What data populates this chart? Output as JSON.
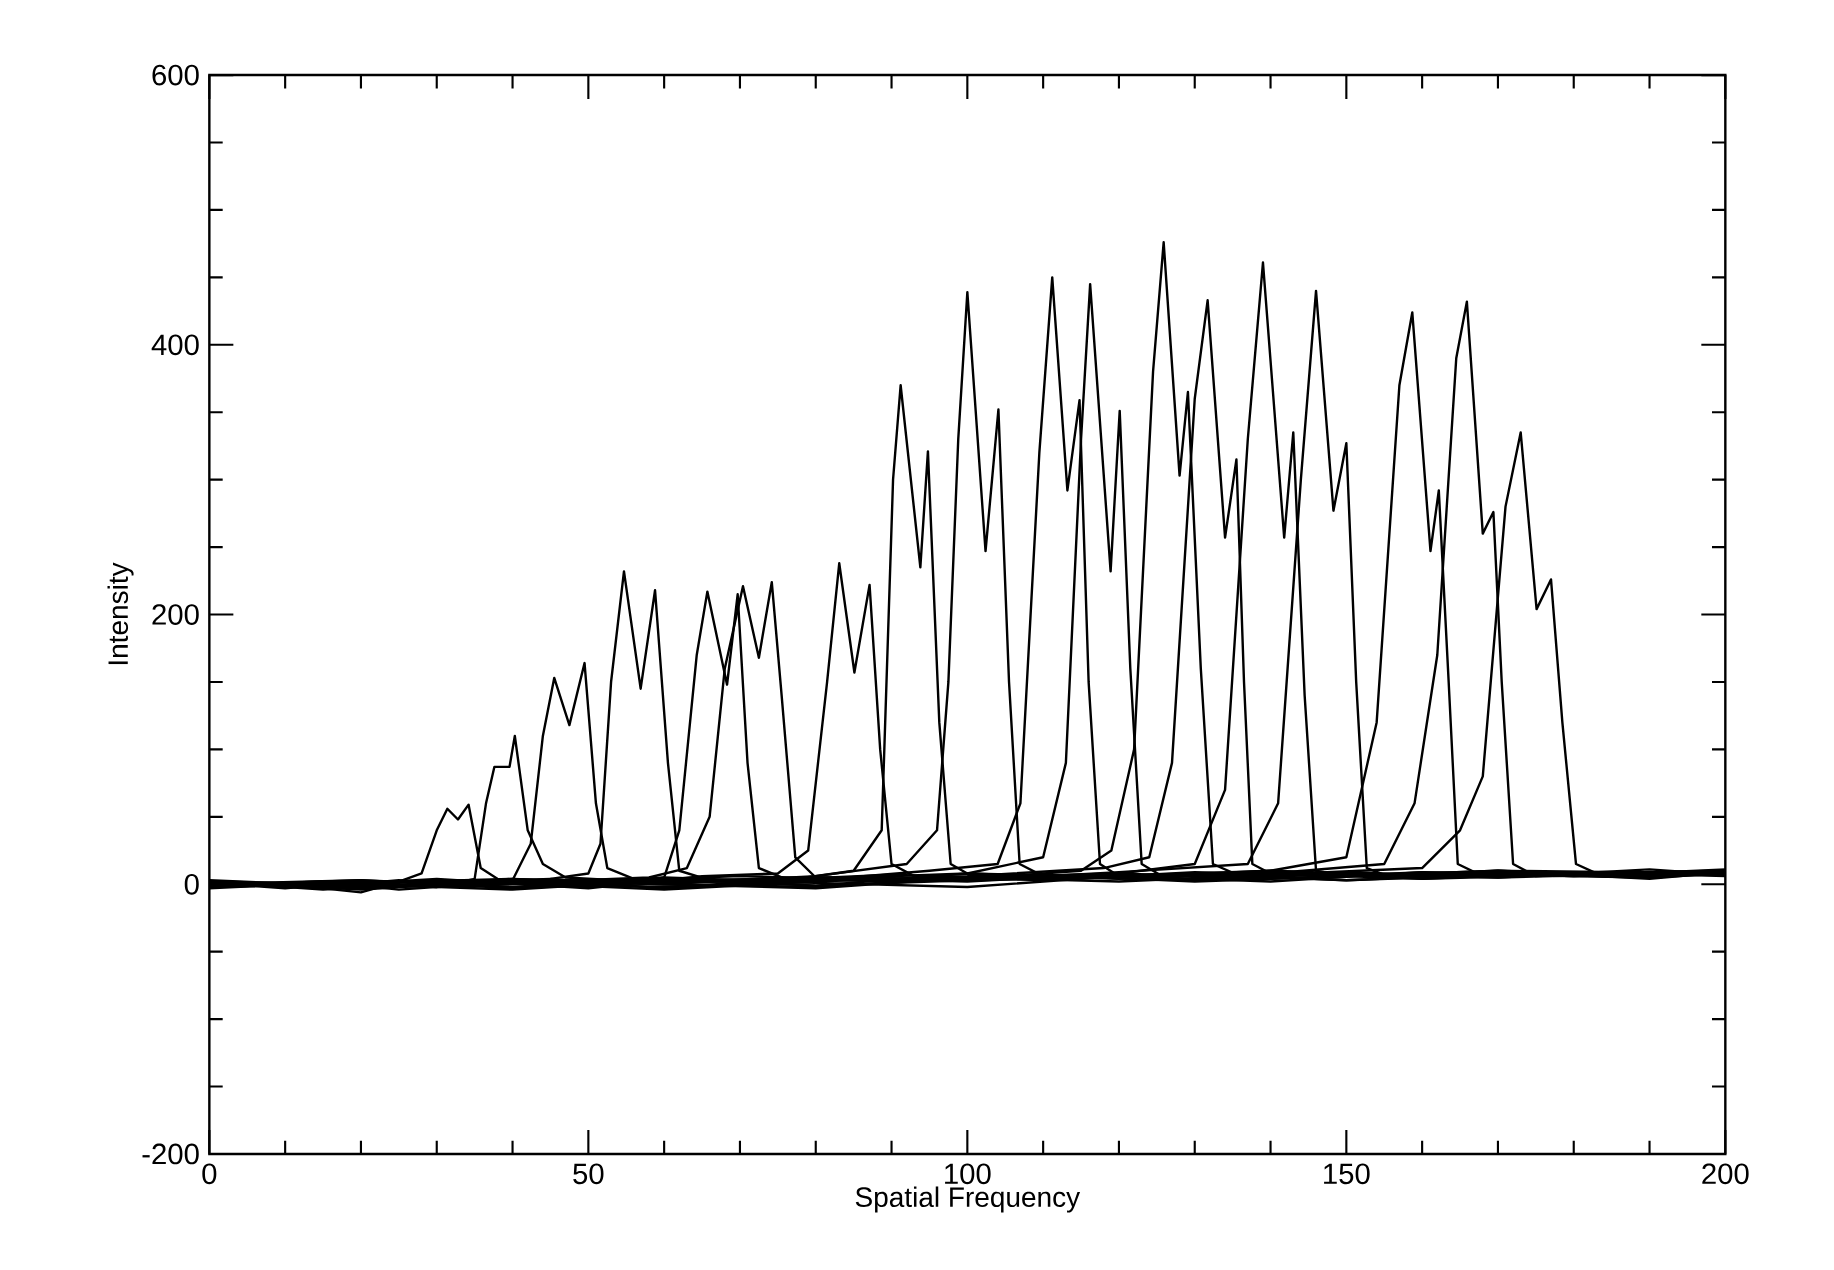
{
  "chart_data": {
    "type": "line",
    "xlabel": "Spatial Frequency",
    "ylabel": "Intensity",
    "marker": "none",
    "xlim": [
      0,
      200
    ],
    "ylim": [
      -200,
      600
    ],
    "xticks": [
      0,
      {
        "value": 10,
        "label": null
      },
      {
        "value": 20,
        "label": null
      },
      {
        "value": 30,
        "label": null
      },
      {
        "value": 40,
        "label": null
      },
      50,
      {
        "value": 60,
        "label": null
      },
      {
        "value": 70,
        "label": null
      },
      {
        "value": 80,
        "label": null
      },
      {
        "value": 90,
        "label": null
      },
      100,
      {
        "value": 110,
        "label": null
      },
      {
        "value": 120,
        "label": null
      },
      {
        "value": 130,
        "label": null
      },
      {
        "value": 140,
        "label": null
      },
      150,
      {
        "value": 160,
        "label": null
      },
      {
        "value": 170,
        "label": null
      },
      {
        "value": 180,
        "label": null
      },
      {
        "value": 190,
        "label": null
      },
      200
    ],
    "yticks": [
      -200,
      {
        "value": -150,
        "label": null
      },
      {
        "value": -100,
        "label": null
      },
      {
        "value": -50,
        "label": null
      },
      0,
      {
        "value": 50,
        "label": null
      },
      {
        "value": 100,
        "label": null
      },
      {
        "value": 150,
        "label": null
      },
      200,
      {
        "value": 250,
        "label": null
      },
      {
        "value": 300,
        "label": null
      },
      {
        "value": 350,
        "label": null
      },
      400,
      {
        "value": 450,
        "label": null
      },
      {
        "value": 500,
        "label": null
      },
      {
        "value": 550,
        "label": null
      },
      600
    ],
    "series": [
      {
        "color": "#000000",
        "x": [
          0,
          10,
          20,
          25,
          28,
          30,
          31.4,
          32.8,
          34.2,
          35.8,
          38,
          50,
          70,
          90,
          110,
          130,
          150,
          170,
          190,
          200
        ],
        "values": [
          -2,
          0,
          -6,
          2,
          8,
          40,
          56,
          48,
          59,
          12,
          4,
          2,
          6,
          3,
          5,
          8,
          6,
          9,
          7,
          10
        ]
      },
      {
        "color": "#000000",
        "x": [
          0,
          10,
          20,
          30,
          35,
          36.5,
          37.6,
          39.6,
          40.3,
          42,
          44,
          47,
          60,
          80,
          100,
          120,
          140,
          160,
          180,
          200
        ],
        "values": [
          1,
          -3,
          2,
          -2,
          4,
          60,
          87,
          87,
          110,
          40,
          15,
          5,
          1,
          4,
          8,
          5,
          10,
          6,
          8,
          9
        ]
      },
      {
        "color": "#000000",
        "x": [
          0,
          15,
          25,
          35,
          40,
          42.4,
          44,
          45.5,
          47.5,
          49.5,
          51,
          52.5,
          56,
          70,
          90,
          110,
          130,
          150,
          170,
          200
        ],
        "values": [
          -1,
          2,
          -4,
          0,
          3,
          30,
          110,
          153,
          118,
          164,
          60,
          12,
          4,
          2,
          7,
          3,
          9,
          6,
          10,
          8
        ]
      },
      {
        "color": "#000000",
        "x": [
          0,
          15,
          25,
          35,
          45,
          50,
          51.6,
          53,
          54.7,
          56.9,
          58.8,
          60.5,
          62,
          66,
          80,
          100,
          120,
          140,
          160,
          180,
          200
        ],
        "values": [
          0,
          -2,
          3,
          -1,
          4,
          8,
          30,
          150,
          232,
          145,
          218,
          90,
          10,
          3,
          5,
          2,
          8,
          4,
          9,
          6,
          11
        ]
      },
      {
        "color": "#000000",
        "x": [
          0,
          15,
          30,
          45,
          55,
          60,
          62,
          64.3,
          65.7,
          68.3,
          69.7,
          71,
          72.5,
          76,
          90,
          110,
          130,
          150,
          170,
          190,
          200
        ],
        "values": [
          2,
          -4,
          1,
          4,
          0,
          5,
          40,
          170,
          217,
          148,
          215,
          90,
          12,
          4,
          2,
          6,
          3,
          9,
          5,
          8,
          7
        ]
      },
      {
        "color": "#000000",
        "x": [
          0,
          15,
          30,
          45,
          58,
          63,
          66,
          68,
          70.4,
          72.5,
          74.2,
          75.5,
          77.3,
          80,
          90,
          110,
          130,
          150,
          170,
          190,
          200
        ],
        "values": [
          -3,
          1,
          -2,
          2,
          5,
          12,
          50,
          160,
          221,
          168,
          224,
          140,
          20,
          5,
          3,
          7,
          2,
          6,
          10,
          4,
          9
        ]
      },
      {
        "color": "#000000",
        "x": [
          0,
          15,
          30,
          50,
          65,
          75,
          79,
          81.5,
          83.1,
          85.1,
          87.1,
          88.5,
          90,
          93,
          110,
          130,
          150,
          170,
          190,
          200
        ],
        "values": [
          1,
          -1,
          4,
          -3,
          6,
          8,
          25,
          150,
          238,
          157,
          222,
          100,
          15,
          6,
          4,
          8,
          3,
          7,
          5,
          10
        ]
      },
      {
        "color": "#000000",
        "x": [
          0,
          20,
          40,
          60,
          75,
          85,
          88.7,
          90.2,
          91.2,
          93.8,
          94.8,
          96.3,
          97.8,
          100,
          120,
          140,
          160,
          180,
          200
        ],
        "values": [
          0,
          3,
          -2,
          5,
          2,
          10,
          40,
          300,
          370,
          235,
          321,
          120,
          15,
          8,
          4,
          9,
          6,
          7,
          10
        ]
      },
      {
        "color": "#000000",
        "x": [
          0,
          20,
          40,
          60,
          80,
          92,
          96,
          97.5,
          98.8,
          100,
          102.4,
          104.1,
          105.5,
          106.9,
          110,
          130,
          150,
          170,
          190,
          200
        ],
        "values": [
          2,
          -4,
          3,
          0,
          6,
          15,
          40,
          150,
          330,
          439,
          247,
          352,
          150,
          15,
          6,
          3,
          8,
          5,
          11,
          7
        ]
      },
      {
        "color": "#000000",
        "x": [
          0,
          20,
          40,
          60,
          80,
          95,
          104,
          107,
          109.5,
          111.2,
          113.2,
          114.8,
          116,
          117.5,
          120,
          140,
          160,
          180,
          200
        ],
        "values": [
          -2,
          1,
          4,
          -3,
          3,
          10,
          15,
          60,
          320,
          450,
          292,
          359,
          150,
          15,
          6,
          2,
          9,
          6,
          8
        ]
      },
      {
        "color": "#000000",
        "x": [
          0,
          20,
          40,
          60,
          80,
          100,
          110,
          113,
          115,
          116.2,
          118.9,
          120.1,
          121.5,
          123,
          126,
          140,
          160,
          180,
          200
        ],
        "values": [
          1,
          -2,
          0,
          4,
          -1,
          8,
          20,
          90,
          330,
          445,
          232,
          351,
          160,
          15,
          5,
          10,
          4,
          9,
          6
        ]
      },
      {
        "color": "#000000",
        "x": [
          0,
          20,
          40,
          60,
          80,
          100,
          115,
          119,
          122,
          124.5,
          125.9,
          128,
          129.1,
          130.8,
          132.4,
          136,
          150,
          170,
          190,
          200
        ],
        "values": [
          -1,
          3,
          -3,
          2,
          5,
          4,
          10,
          25,
          100,
          380,
          476,
          303,
          365,
          160,
          15,
          6,
          3,
          8,
          5,
          10
        ]
      },
      {
        "color": "#000000",
        "x": [
          0,
          20,
          40,
          60,
          80,
          100,
          118,
          124,
          127,
          130,
          131.7,
          134,
          135.5,
          136.5,
          137.6,
          140,
          160,
          180,
          200
        ],
        "values": [
          3,
          -2,
          1,
          -4,
          2,
          6,
          12,
          20,
          90,
          360,
          433,
          257,
          315,
          150,
          15,
          8,
          4,
          7,
          9
        ]
      },
      {
        "color": "#000000",
        "x": [
          0,
          20,
          40,
          60,
          80,
          100,
          120,
          130,
          134,
          137,
          139,
          141.8,
          143,
          144.5,
          146,
          150,
          170,
          190,
          200
        ],
        "values": [
          -2,
          1,
          3,
          0,
          -3,
          5,
          8,
          15,
          70,
          330,
          461,
          257,
          335,
          140,
          10,
          6,
          9,
          5,
          8
        ]
      },
      {
        "color": "#000000",
        "x": [
          0,
          20,
          40,
          60,
          80,
          100,
          120,
          137,
          141,
          144,
          146,
          148.3,
          150,
          151.3,
          152.7,
          156,
          170,
          190,
          200
        ],
        "values": [
          0,
          -3,
          2,
          4,
          -1,
          3,
          9,
          15,
          60,
          300,
          440,
          277,
          327,
          150,
          12,
          5,
          10,
          6,
          9
        ]
      },
      {
        "color": "#000000",
        "x": [
          0,
          20,
          40,
          60,
          80,
          100,
          120,
          140,
          150,
          154,
          157,
          158.7,
          161.1,
          162.2,
          163.5,
          164.7,
          168,
          180,
          200
        ],
        "values": [
          2,
          0,
          -4,
          3,
          1,
          -2,
          6,
          10,
          20,
          120,
          370,
          424,
          247,
          292,
          150,
          15,
          6,
          8,
          10
        ]
      },
      {
        "color": "#000000",
        "x": [
          0,
          20,
          40,
          60,
          80,
          100,
          120,
          140,
          155,
          159,
          162,
          164.5,
          165.9,
          168,
          169.4,
          170.5,
          172,
          175,
          190,
          200
        ],
        "values": [
          -1,
          2,
          1,
          -2,
          4,
          3,
          5,
          8,
          15,
          60,
          170,
          390,
          432,
          260,
          276,
          150,
          15,
          6,
          9,
          8
        ]
      },
      {
        "color": "#000000",
        "x": [
          0,
          20,
          40,
          60,
          80,
          100,
          120,
          140,
          160,
          165,
          168,
          171,
          173,
          175.1,
          177,
          178.5,
          180.3,
          183,
          190,
          200
        ],
        "values": [
          1,
          -3,
          4,
          0,
          -2,
          5,
          2,
          7,
          12,
          40,
          80,
          280,
          335,
          204,
          226,
          120,
          15,
          8,
          5,
          9
        ]
      }
    ]
  }
}
